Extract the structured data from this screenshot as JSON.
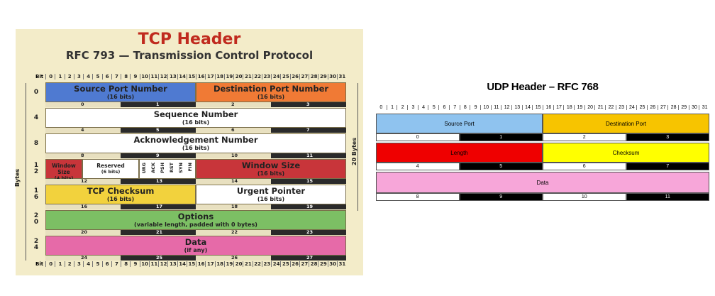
{
  "tcp": {
    "title": "TCP Header",
    "subtitle": "RFC 793 — Transmission Control Protocol",
    "bit_label": "Bit",
    "bit_numbers": [
      "0",
      "1",
      "2",
      "3",
      "4",
      "5",
      "6",
      "7",
      "8",
      "9",
      "10",
      "11",
      "12",
      "13",
      "14",
      "15",
      "16",
      "17",
      "18",
      "19",
      "20",
      "21",
      "22",
      "23",
      "24",
      "25",
      "26",
      "27",
      "28",
      "29",
      "30",
      "31"
    ],
    "bytes_label": "Bytes",
    "total_label": "20 Bytes",
    "row_labels": [
      "0",
      "4",
      "8",
      "1\n2",
      "1\n6",
      "2\n0",
      "2\n4"
    ],
    "fields": {
      "source_port": {
        "name": "Source Port Number",
        "size": "(16 bits)"
      },
      "dest_port": {
        "name": "Destination Port Number",
        "size": "(16 bits)"
      },
      "sequence": {
        "name": "Sequence Number",
        "size": "(16 bits)"
      },
      "ack": {
        "name": "Acknowledgement Number",
        "size": "(16 bits)"
      },
      "window_size_small": {
        "name": "Window Size",
        "size": "(4 bits)"
      },
      "reserved": {
        "name": "Reserved",
        "size": "(6 bits)"
      },
      "flags": [
        "URG",
        "ACK",
        "PSH",
        "RST",
        "SYN",
        "FIN"
      ],
      "window_size": {
        "name": "Window Size",
        "size": "(16 bits)"
      },
      "checksum": {
        "name": "TCP Checksum",
        "size": "(16 bits)"
      },
      "urgent": {
        "name": "Urgent Pointer",
        "size": "(16 bits)"
      },
      "options": {
        "name": "Options",
        "size": "(variable length, padded with 0 bytes)"
      },
      "data": {
        "name": "Data",
        "size": "(if any)"
      }
    },
    "byte_indices": [
      [
        "0",
        "1",
        "2",
        "3"
      ],
      [
        "4",
        "5",
        "6",
        "7"
      ],
      [
        "8",
        "9",
        "10",
        "11"
      ],
      [
        "12",
        "13",
        "14",
        "15"
      ],
      [
        "16",
        "17",
        "18",
        "19"
      ],
      [
        "20",
        "21",
        "22",
        "23"
      ],
      [
        "24",
        "25",
        "26",
        "27"
      ]
    ],
    "colors": {
      "blue": "#4f7ad1",
      "orange": "#f07a35",
      "white": "#ffffff",
      "red": "#c8353a",
      "yellow": "#f2d23d",
      "green": "#7cbf64",
      "pink": "#e66aa8",
      "bg": "#f3ecc9"
    }
  },
  "udp": {
    "title": "UDP Header – RFC 768",
    "bit_numbers": [
      "0",
      "1",
      "2",
      "3",
      "4",
      "5",
      "6",
      "7",
      "8",
      "9",
      "10",
      "11",
      "12",
      "13",
      "14",
      "15",
      "16",
      "17",
      "18",
      "19",
      "20",
      "21",
      "22",
      "23",
      "24",
      "25",
      "26",
      "27",
      "28",
      "29",
      "30",
      "31"
    ],
    "fields": {
      "source_port": "Source Port",
      "dest_port": "Destination Port",
      "length": "Length",
      "checksum": "Checksum",
      "data": "Data"
    },
    "byte_indices": [
      [
        "0",
        "1",
        "2",
        "3"
      ],
      [
        "4",
        "5",
        "6",
        "7"
      ],
      [
        "8",
        "9",
        "10",
        "11"
      ]
    ],
    "colors": {
      "blue": "#8fc3ef",
      "orange": "#f7c400",
      "red": "#ef0000",
      "yellow": "#ffff00",
      "pink": "#f7a6d9"
    }
  }
}
